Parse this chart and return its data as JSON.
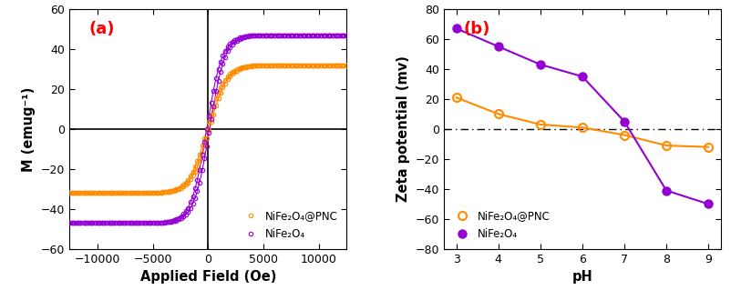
{
  "panel_a": {
    "title": "(a)",
    "xlabel": "Applied Field (Oe)",
    "ylabel": "M (emug⁻¹)",
    "xlim": [
      -12500,
      12500
    ],
    "ylim": [
      -60,
      60
    ],
    "xticks": [
      -10000,
      -5000,
      0,
      5000,
      10000
    ],
    "yticks": [
      -60,
      -40,
      -20,
      0,
      20,
      40,
      60
    ],
    "NiFe2O4_PNC": {
      "color": "#FF8C00",
      "Ms": 32,
      "Hc": 100,
      "sharpness": 1600,
      "label": "NiFe₂O₄@PNC"
    },
    "NiFe2O4": {
      "color": "#9400D3",
      "Ms": 47,
      "Hc": 130,
      "sharpness": 1400,
      "label": "NiFe₂O₄"
    },
    "n_points": 500,
    "n_markers": 120
  },
  "panel_b": {
    "title": "(b)",
    "xlabel": "pH",
    "ylabel": "Zeta potential (mv)",
    "xlim": [
      2.7,
      9.3
    ],
    "ylim": [
      -80,
      80
    ],
    "xticks": [
      3,
      4,
      5,
      6,
      7,
      8,
      9
    ],
    "yticks": [
      -80,
      -60,
      -40,
      -20,
      0,
      20,
      40,
      60,
      80
    ],
    "NiFe2O4_PNC": {
      "color": "#FF8C00",
      "x": [
        3,
        4,
        5,
        6,
        7,
        8,
        9
      ],
      "y": [
        21,
        10,
        3,
        1,
        -4,
        -11,
        -12
      ],
      "label": "NiFe₂O₄@PNC"
    },
    "NiFe2O4": {
      "color": "#9400D3",
      "x": [
        3,
        4,
        5,
        6,
        7,
        8,
        9
      ],
      "y": [
        67,
        55,
        43,
        35,
        5,
        -41,
        -50
      ],
      "label": "NiFe₂O₄"
    }
  }
}
